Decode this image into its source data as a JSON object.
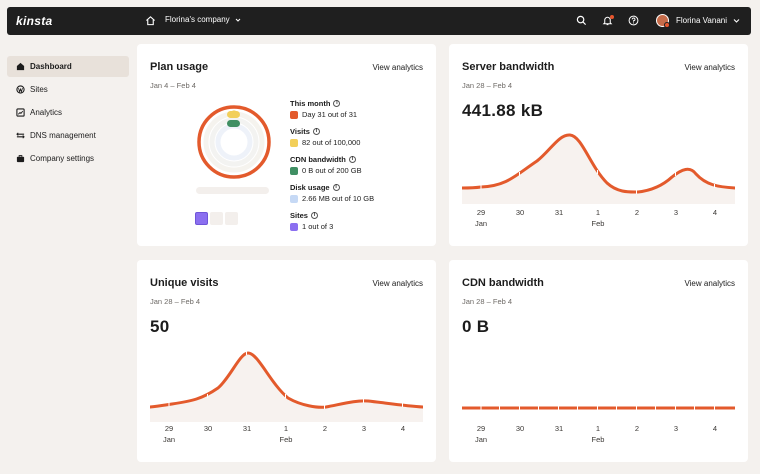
{
  "header": {
    "logo": "kinsta",
    "company": "Florina's company",
    "username": "Florina Vanani"
  },
  "sidebar": {
    "items": [
      {
        "label": "Dashboard",
        "icon": "home-icon",
        "active": true
      },
      {
        "label": "Sites",
        "icon": "wordpress-icon",
        "active": false
      },
      {
        "label": "Analytics",
        "icon": "analytics-icon",
        "active": false
      },
      {
        "label": "DNS management",
        "icon": "dns-icon",
        "active": false
      },
      {
        "label": "Company settings",
        "icon": "briefcase-icon",
        "active": false
      }
    ]
  },
  "plan_usage": {
    "title": "Plan usage",
    "link": "View analytics",
    "range": "Jan 4 – Feb 4",
    "legend": [
      {
        "heading": "This month",
        "value": "Day 31 out of 31",
        "color": "#e35a2c",
        "fraction": 1.0
      },
      {
        "heading": "Visits",
        "value": "82 out of 100,000",
        "color": "#f2cf5a",
        "fraction": 0.0008
      },
      {
        "heading": "CDN bandwidth",
        "value": "0 B out of 200 GB",
        "color": "#3f8f63",
        "fraction": 0
      },
      {
        "heading": "Disk usage",
        "value": "2.66 MB out of 10 GB",
        "color": "#c6d9f5",
        "fraction": 0.0003
      },
      {
        "heading": "Sites",
        "value": "1 out of 3",
        "color": "#8b6ff0",
        "fraction": 0.333
      }
    ]
  },
  "server_bandwidth": {
    "title": "Server bandwidth",
    "link": "View analytics",
    "range": "Jan 28 – Feb 4",
    "value": "441.88 kB"
  },
  "unique_visits": {
    "title": "Unique visits",
    "link": "View analytics",
    "range": "Jan 28 – Feb 4",
    "value": "50"
  },
  "cdn_bandwidth": {
    "title": "CDN bandwidth",
    "link": "View analytics",
    "range": "Jan 28 – Feb 4",
    "value": "0 B"
  },
  "x_axis": {
    "ticks": [
      "29",
      "30",
      "31",
      "1",
      "2",
      "3",
      "4"
    ],
    "sub_jan": "Jan",
    "sub_feb": "Feb"
  },
  "colors": {
    "accent": "#e35a2c",
    "area": "#f7f2ef"
  }
}
